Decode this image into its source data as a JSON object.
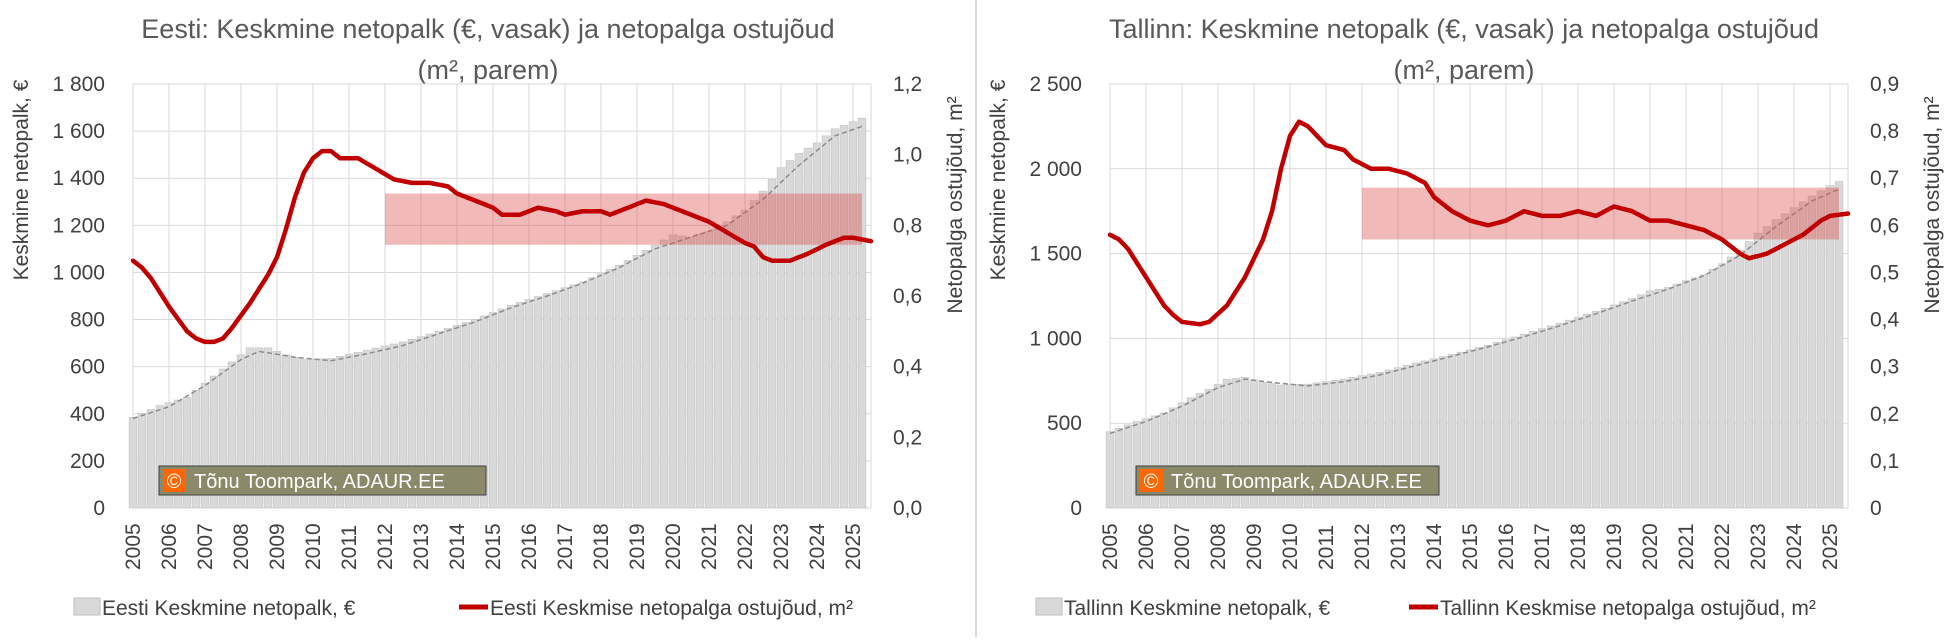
{
  "watermark": "Tõnu Toompark, ADAUR.EE",
  "watermark_symbol": "©",
  "chart_data": [
    {
      "type": "bar",
      "title_line1": "Eesti: Keskmine netopalk (€, vasak) ja netopalga ostujõud",
      "title_line2": "(m², parem)",
      "ylabel_left": "Keskmine netopalk, €",
      "ylabel_right": "Netopalga ostujõud, m²",
      "x_labels": [
        "2005",
        "2006",
        "2007",
        "2008",
        "2009",
        "2010",
        "2011",
        "2012",
        "2013",
        "2014",
        "2015",
        "2016",
        "2017",
        "2018",
        "2019",
        "2020",
        "2021",
        "2022",
        "2023",
        "2024",
        "2025"
      ],
      "left_ticks": [
        "0",
        "200",
        "400",
        "600",
        "800",
        "1 000",
        "1 200",
        "1 400",
        "1 600",
        "1 800"
      ],
      "right_ticks": [
        "0,0",
        "0,2",
        "0,4",
        "0,6",
        "0,8",
        "1,0",
        "1,2"
      ],
      "ylim_left": [
        0,
        1800
      ],
      "ylim_right": [
        0,
        1.2
      ],
      "x_start": 2005,
      "x_end": 2025.5,
      "bar_series_name": "Eesti Keskmine netopalk, €",
      "line_series_name": "Eesti Keskmise netopalga ostujõud, m²",
      "band": {
        "x_from": 2012.0,
        "x_to": 2025.25,
        "y_from": 0.745,
        "y_to": 0.89
      },
      "bar_anchors": [
        [
          2005.0,
          385
        ],
        [
          2005.75,
          435
        ],
        [
          2006.5,
          470
        ],
        [
          2007.25,
          560
        ],
        [
          2007.75,
          620
        ],
        [
          2008.25,
          680
        ],
        [
          2008.75,
          680
        ],
        [
          2009.25,
          650
        ],
        [
          2009.75,
          630
        ],
        [
          2010.5,
          635
        ],
        [
          2011.5,
          670
        ],
        [
          2012.5,
          705
        ],
        [
          2013.5,
          750
        ],
        [
          2014.5,
          800
        ],
        [
          2015.5,
          860
        ],
        [
          2016.5,
          910
        ],
        [
          2017.5,
          960
        ],
        [
          2018.5,
          1030
        ],
        [
          2019.5,
          1115
        ],
        [
          2020.0,
          1160
        ],
        [
          2020.5,
          1150
        ],
        [
          2021.0,
          1175
        ],
        [
          2021.5,
          1215
        ],
        [
          2022.0,
          1265
        ],
        [
          2022.5,
          1345
        ],
        [
          2023.0,
          1445
        ],
        [
          2023.5,
          1505
        ],
        [
          2024.0,
          1550
        ],
        [
          2024.5,
          1610
        ],
        [
          2025.0,
          1640
        ],
        [
          2025.25,
          1655
        ]
      ],
      "trend_anchors": [
        [
          2005.0,
          380
        ],
        [
          2006.0,
          430
        ],
        [
          2007.0,
          520
        ],
        [
          2008.0,
          630
        ],
        [
          2008.5,
          665
        ],
        [
          2009.5,
          640
        ],
        [
          2010.5,
          625
        ],
        [
          2011.5,
          655
        ],
        [
          2012.5,
          690
        ],
        [
          2013.5,
          740
        ],
        [
          2014.5,
          790
        ],
        [
          2015.5,
          850
        ],
        [
          2016.5,
          900
        ],
        [
          2017.5,
          955
        ],
        [
          2018.5,
          1020
        ],
        [
          2019.5,
          1100
        ],
        [
          2020.5,
          1150
        ],
        [
          2021.5,
          1200
        ],
        [
          2022.5,
          1310
        ],
        [
          2023.5,
          1455
        ],
        [
          2024.5,
          1580
        ],
        [
          2025.25,
          1620
        ]
      ],
      "line_anchors": [
        [
          2005.0,
          0.7
        ],
        [
          2005.25,
          0.68
        ],
        [
          2005.5,
          0.65
        ],
        [
          2006.0,
          0.57
        ],
        [
          2006.5,
          0.5
        ],
        [
          2006.75,
          0.48
        ],
        [
          2007.0,
          0.47
        ],
        [
          2007.25,
          0.47
        ],
        [
          2007.5,
          0.48
        ],
        [
          2007.75,
          0.51
        ],
        [
          2008.25,
          0.58
        ],
        [
          2008.75,
          0.66
        ],
        [
          2009.0,
          0.71
        ],
        [
          2009.25,
          0.79
        ],
        [
          2009.5,
          0.88
        ],
        [
          2009.75,
          0.95
        ],
        [
          2010.0,
          0.99
        ],
        [
          2010.25,
          1.01
        ],
        [
          2010.5,
          1.01
        ],
        [
          2010.75,
          0.99
        ],
        [
          2011.25,
          0.99
        ],
        [
          2011.75,
          0.96
        ],
        [
          2012.25,
          0.93
        ],
        [
          2012.75,
          0.92
        ],
        [
          2013.25,
          0.92
        ],
        [
          2013.75,
          0.91
        ],
        [
          2014.0,
          0.89
        ],
        [
          2014.5,
          0.87
        ],
        [
          2015.0,
          0.85
        ],
        [
          2015.25,
          0.83
        ],
        [
          2015.75,
          0.83
        ],
        [
          2016.25,
          0.85
        ],
        [
          2016.75,
          0.84
        ],
        [
          2017.0,
          0.83
        ],
        [
          2017.5,
          0.84
        ],
        [
          2018.0,
          0.84
        ],
        [
          2018.25,
          0.83
        ],
        [
          2018.75,
          0.85
        ],
        [
          2019.25,
          0.87
        ],
        [
          2019.75,
          0.86
        ],
        [
          2020.25,
          0.84
        ],
        [
          2020.75,
          0.82
        ],
        [
          2021.0,
          0.81
        ],
        [
          2021.5,
          0.78
        ],
        [
          2022.0,
          0.75
        ],
        [
          2022.25,
          0.74
        ],
        [
          2022.5,
          0.71
        ],
        [
          2022.75,
          0.7
        ],
        [
          2023.25,
          0.7
        ],
        [
          2023.75,
          0.72
        ],
        [
          2024.25,
          0.745
        ],
        [
          2024.75,
          0.765
        ],
        [
          2025.0,
          0.765
        ],
        [
          2025.25,
          0.76
        ],
        [
          2025.5,
          0.755
        ]
      ]
    },
    {
      "type": "bar",
      "title_line1": "Tallinn: Keskmine netopalk (€, vasak) ja netopalga ostujõud",
      "title_line2": "(m², parem)",
      "ylabel_left": "Keskmine netopalk, €",
      "ylabel_right": "Netopalga ostujõud, m²",
      "x_labels": [
        "2005",
        "2006",
        "2007",
        "2008",
        "2009",
        "2010",
        "2011",
        "2012",
        "2013",
        "2014",
        "2015",
        "2016",
        "2017",
        "2018",
        "2019",
        "2020",
        "2021",
        "2022",
        "2023",
        "2024",
        "2025"
      ],
      "left_ticks": [
        "0",
        "500",
        "1 000",
        "1 500",
        "2 000",
        "2 500"
      ],
      "right_ticks": [
        "0",
        "0,1",
        "0,2",
        "0,3",
        "0,4",
        "0,5",
        "0,6",
        "0,7",
        "0,8",
        "0,9"
      ],
      "ylim_left": [
        0,
        2500
      ],
      "ylim_right": [
        0,
        0.9
      ],
      "x_start": 2005,
      "x_end": 2025.5,
      "bar_series_name": "Tallinn Keskmine netopalk, €",
      "line_series_name": "Tallinn Keskmise netopalga ostujõud, m²",
      "band": {
        "x_from": 2012.0,
        "x_to": 2025.25,
        "y_from": 0.57,
        "y_to": 0.68
      },
      "bar_anchors": [
        [
          2005.0,
          450
        ],
        [
          2005.75,
          510
        ],
        [
          2006.5,
          560
        ],
        [
          2007.25,
          650
        ],
        [
          2007.75,
          700
        ],
        [
          2008.25,
          760
        ],
        [
          2008.75,
          770
        ],
        [
          2009.25,
          740
        ],
        [
          2009.75,
          725
        ],
        [
          2010.5,
          730
        ],
        [
          2011.5,
          760
        ],
        [
          2012.5,
          800
        ],
        [
          2013.5,
          855
        ],
        [
          2014.5,
          905
        ],
        [
          2015.5,
          960
        ],
        [
          2016.5,
          1025
        ],
        [
          2017.5,
          1090
        ],
        [
          2018.5,
          1160
        ],
        [
          2019.5,
          1235
        ],
        [
          2020.0,
          1280
        ],
        [
          2020.5,
          1300
        ],
        [
          2021.0,
          1340
        ],
        [
          2021.5,
          1375
        ],
        [
          2022.0,
          1440
        ],
        [
          2022.5,
          1520
        ],
        [
          2023.0,
          1620
        ],
        [
          2023.5,
          1700
        ],
        [
          2024.0,
          1770
        ],
        [
          2024.5,
          1840
        ],
        [
          2025.0,
          1900
        ],
        [
          2025.25,
          1925
        ]
      ],
      "trend_anchors": [
        [
          2005.0,
          440
        ],
        [
          2006.0,
          510
        ],
        [
          2007.0,
          600
        ],
        [
          2008.0,
          710
        ],
        [
          2008.75,
          760
        ],
        [
          2009.5,
          740
        ],
        [
          2010.5,
          720
        ],
        [
          2011.5,
          745
        ],
        [
          2012.5,
          785
        ],
        [
          2013.5,
          840
        ],
        [
          2014.5,
          895
        ],
        [
          2015.5,
          950
        ],
        [
          2016.5,
          1010
        ],
        [
          2017.5,
          1075
        ],
        [
          2018.5,
          1145
        ],
        [
          2019.5,
          1220
        ],
        [
          2020.5,
          1290
        ],
        [
          2021.5,
          1370
        ],
        [
          2022.5,
          1490
        ],
        [
          2023.5,
          1660
        ],
        [
          2024.5,
          1810
        ],
        [
          2025.25,
          1880
        ]
      ],
      "line_anchors": [
        [
          2005.0,
          0.58
        ],
        [
          2005.25,
          0.57
        ],
        [
          2005.5,
          0.55
        ],
        [
          2006.0,
          0.49
        ],
        [
          2006.5,
          0.43
        ],
        [
          2006.75,
          0.41
        ],
        [
          2007.0,
          0.395
        ],
        [
          2007.5,
          0.39
        ],
        [
          2007.75,
          0.395
        ],
        [
          2008.25,
          0.43
        ],
        [
          2008.75,
          0.49
        ],
        [
          2009.25,
          0.57
        ],
        [
          2009.5,
          0.63
        ],
        [
          2009.75,
          0.72
        ],
        [
          2010.0,
          0.79
        ],
        [
          2010.25,
          0.82
        ],
        [
          2010.5,
          0.81
        ],
        [
          2010.75,
          0.79
        ],
        [
          2011.0,
          0.77
        ],
        [
          2011.5,
          0.76
        ],
        [
          2011.75,
          0.74
        ],
        [
          2012.25,
          0.72
        ],
        [
          2012.75,
          0.72
        ],
        [
          2013.25,
          0.71
        ],
        [
          2013.75,
          0.69
        ],
        [
          2014.0,
          0.66
        ],
        [
          2014.5,
          0.63
        ],
        [
          2015.0,
          0.61
        ],
        [
          2015.5,
          0.6
        ],
        [
          2016.0,
          0.61
        ],
        [
          2016.5,
          0.63
        ],
        [
          2017.0,
          0.62
        ],
        [
          2017.5,
          0.62
        ],
        [
          2018.0,
          0.63
        ],
        [
          2018.5,
          0.62
        ],
        [
          2019.0,
          0.64
        ],
        [
          2019.5,
          0.63
        ],
        [
          2020.0,
          0.61
        ],
        [
          2020.5,
          0.61
        ],
        [
          2021.0,
          0.6
        ],
        [
          2021.5,
          0.59
        ],
        [
          2022.0,
          0.57
        ],
        [
          2022.5,
          0.54
        ],
        [
          2022.75,
          0.53
        ],
        [
          2023.25,
          0.54
        ],
        [
          2023.75,
          0.56
        ],
        [
          2024.25,
          0.58
        ],
        [
          2024.75,
          0.61
        ],
        [
          2025.0,
          0.62
        ],
        [
          2025.5,
          0.625
        ]
      ]
    }
  ]
}
